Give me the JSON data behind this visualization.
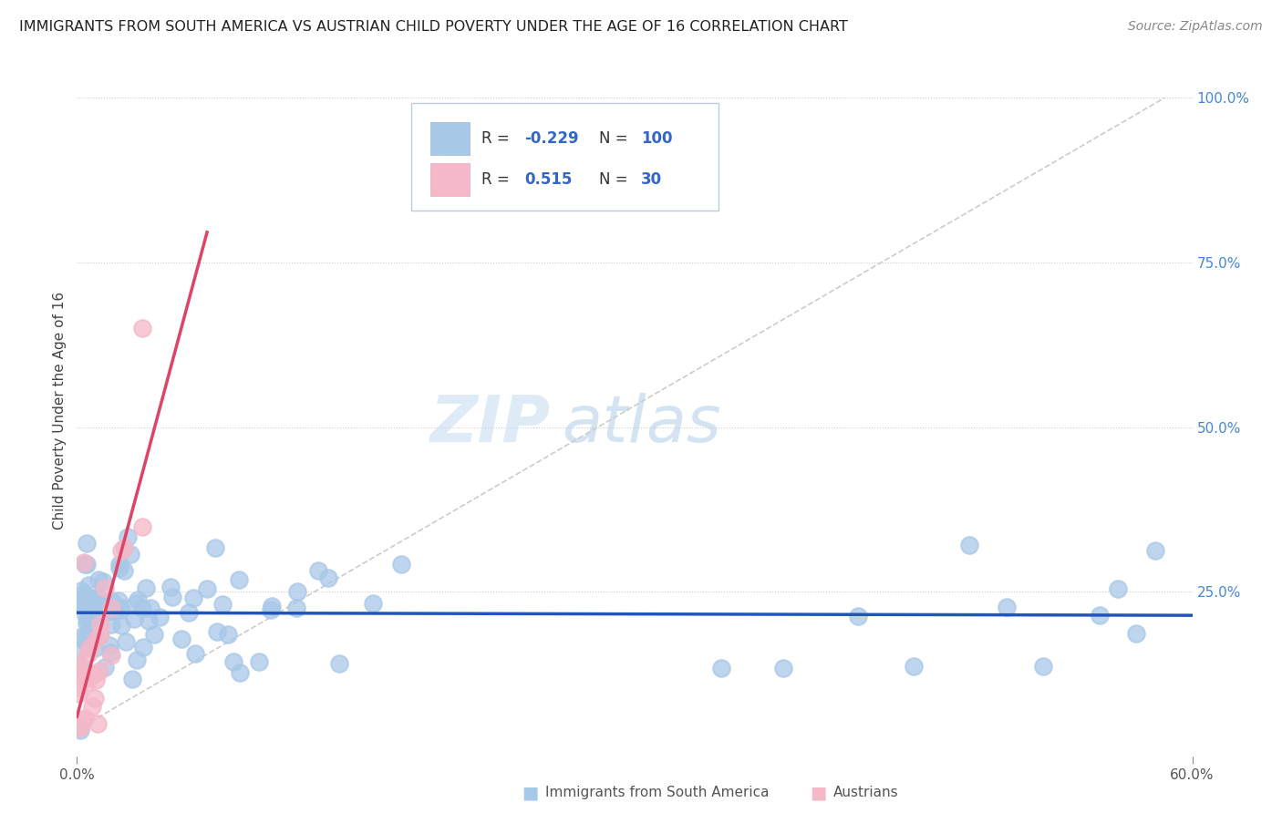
{
  "title": "IMMIGRANTS FROM SOUTH AMERICA VS AUSTRIAN CHILD POVERTY UNDER THE AGE OF 16 CORRELATION CHART",
  "source": "Source: ZipAtlas.com",
  "ylabel": "Child Poverty Under the Age of 16",
  "xlim": [
    0.0,
    0.6
  ],
  "ylim": [
    0.0,
    1.05
  ],
  "legend_blue_label": "Immigrants from South America",
  "legend_pink_label": "Austrians",
  "blue_R": "-0.229",
  "blue_N": "100",
  "pink_R": "0.515",
  "pink_N": "30",
  "blue_color": "#a8c8e8",
  "pink_color": "#f4b8c8",
  "blue_line_color": "#2255bb",
  "pink_line_color": "#dd4466",
  "watermark_zip": "ZIP",
  "watermark_atlas": "atlas",
  "background_color": "#ffffff",
  "grid_color": "#cccccc",
  "title_color": "#222222",
  "source_color": "#888888",
  "right_tick_color": "#4488dd",
  "label_color": "#444444"
}
